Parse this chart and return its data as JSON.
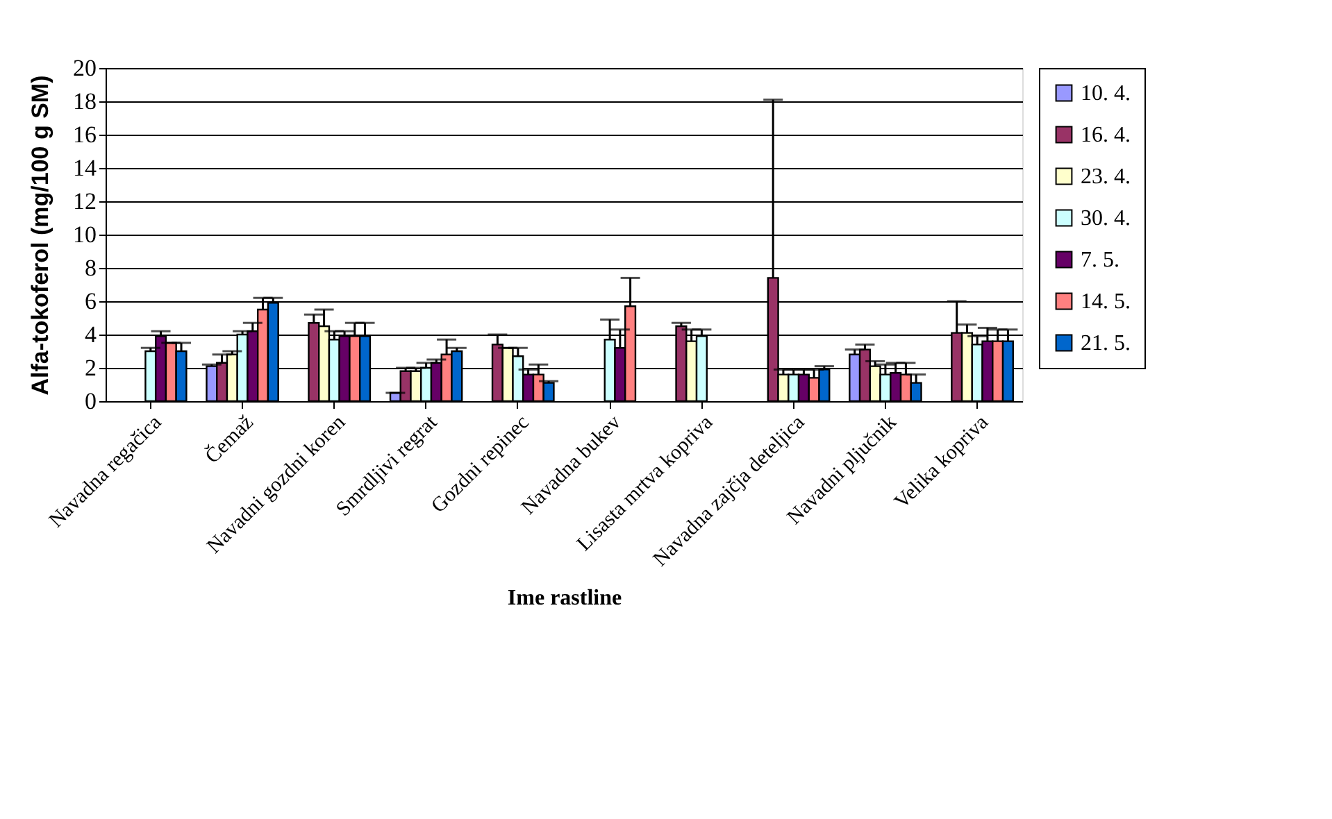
{
  "chart_data": {
    "type": "bar",
    "xlabel": "Ime rastline",
    "ylabel": "Alfa-tokoferol (mg/100 g SM)",
    "categories": [
      "Navadna regačica",
      "Čemaž",
      "Navadni gozdni koren",
      "Smrdljivi regrat",
      "Gozdni repinec",
      "Navadna bukev",
      "Lisasta mrtva kopriva",
      "Navadna zajčja deteljica",
      "Navadni pljučnik",
      "Velika kopriva"
    ],
    "series": [
      {
        "name": "10. 4.",
        "color": "#9999ff",
        "values": [
          null,
          2.1,
          null,
          0.5,
          null,
          null,
          null,
          null,
          2.8,
          null
        ],
        "errors": [
          null,
          [
            2.1,
            2.2
          ],
          null,
          [
            0.5,
            0.5
          ],
          null,
          null,
          null,
          null,
          [
            2.8,
            3.1
          ],
          null
        ]
      },
      {
        "name": "16. 4.",
        "color": "#993366",
        "values": [
          null,
          2.3,
          4.7,
          1.8,
          3.4,
          null,
          4.5,
          7.4,
          3.1,
          4.1
        ],
        "errors": [
          null,
          [
            2.3,
            2.8
          ],
          [
            4.7,
            5.2
          ],
          [
            1.8,
            2.0
          ],
          [
            3.4,
            4.0
          ],
          null,
          [
            4.5,
            4.7
          ],
          [
            7.4,
            18.1
          ],
          [
            3.1,
            3.4
          ],
          [
            4.1,
            6.0
          ]
        ]
      },
      {
        "name": "23. 4.",
        "color": "#ffffcc",
        "values": [
          null,
          2.8,
          4.5,
          1.8,
          3.2,
          null,
          3.6,
          1.6,
          2.1,
          4.1
        ],
        "errors": [
          null,
          [
            2.8,
            3.0
          ],
          [
            4.5,
            5.5
          ],
          [
            1.8,
            2.0
          ],
          [
            3.2,
            3.2
          ],
          null,
          [
            3.6,
            4.3
          ],
          [
            1.6,
            1.9
          ],
          [
            2.1,
            2.4
          ],
          [
            4.1,
            4.6
          ]
        ]
      },
      {
        "name": "30. 4.",
        "color": "#ccffff",
        "values": [
          3.0,
          4.0,
          3.7,
          2.0,
          2.7,
          3.7,
          3.9,
          1.6,
          1.6,
          3.4
        ],
        "errors": [
          [
            3.0,
            3.2
          ],
          [
            4.0,
            4.2
          ],
          [
            3.7,
            4.2
          ],
          [
            2.0,
            2.3
          ],
          [
            2.7,
            3.2
          ],
          [
            3.7,
            4.9
          ],
          [
            3.9,
            4.3
          ],
          [
            1.6,
            1.9
          ],
          [
            1.6,
            2.2
          ],
          [
            3.4,
            3.9
          ]
        ]
      },
      {
        "name": "7. 5.",
        "color": "#660066",
        "values": [
          3.9,
          4.2,
          3.9,
          2.3,
          1.6,
          3.2,
          null,
          1.6,
          1.7,
          3.6
        ],
        "errors": [
          [
            3.9,
            4.2
          ],
          [
            4.2,
            4.7
          ],
          [
            3.9,
            4.2
          ],
          [
            2.3,
            2.5
          ],
          [
            1.6,
            1.9
          ],
          [
            3.2,
            4.3
          ],
          null,
          [
            1.6,
            1.9
          ],
          [
            1.7,
            2.3
          ],
          [
            3.6,
            4.4
          ]
        ]
      },
      {
        "name": "14. 5.",
        "color": "#ff8080",
        "values": [
          3.5,
          5.5,
          3.9,
          2.8,
          1.6,
          5.7,
          null,
          1.4,
          1.6,
          3.6
        ],
        "errors": [
          [
            3.5,
            3.5
          ],
          [
            5.5,
            6.2
          ],
          [
            3.9,
            4.7
          ],
          [
            2.8,
            3.7
          ],
          [
            1.6,
            2.2
          ],
          [
            5.7,
            7.4
          ],
          null,
          [
            1.4,
            1.9
          ],
          [
            1.6,
            2.3
          ],
          [
            3.6,
            4.3
          ]
        ]
      },
      {
        "name": "21. 5.",
        "color": "#0066cc",
        "values": [
          3.0,
          5.9,
          3.9,
          3.0,
          1.1,
          null,
          null,
          1.9,
          1.1,
          3.6
        ],
        "errors": [
          [
            3.0,
            3.5
          ],
          [
            5.9,
            6.2
          ],
          [
            3.9,
            4.7
          ],
          [
            3.0,
            3.2
          ],
          [
            1.1,
            1.2
          ],
          null,
          null,
          [
            1.9,
            2.1
          ],
          [
            1.1,
            1.6
          ],
          [
            3.6,
            4.3
          ]
        ]
      }
    ],
    "ylim": [
      0,
      20
    ],
    "yticks": [
      0,
      2,
      4,
      6,
      8,
      10,
      12,
      14,
      16,
      18,
      20
    ],
    "grid": "y",
    "legend": "right"
  }
}
